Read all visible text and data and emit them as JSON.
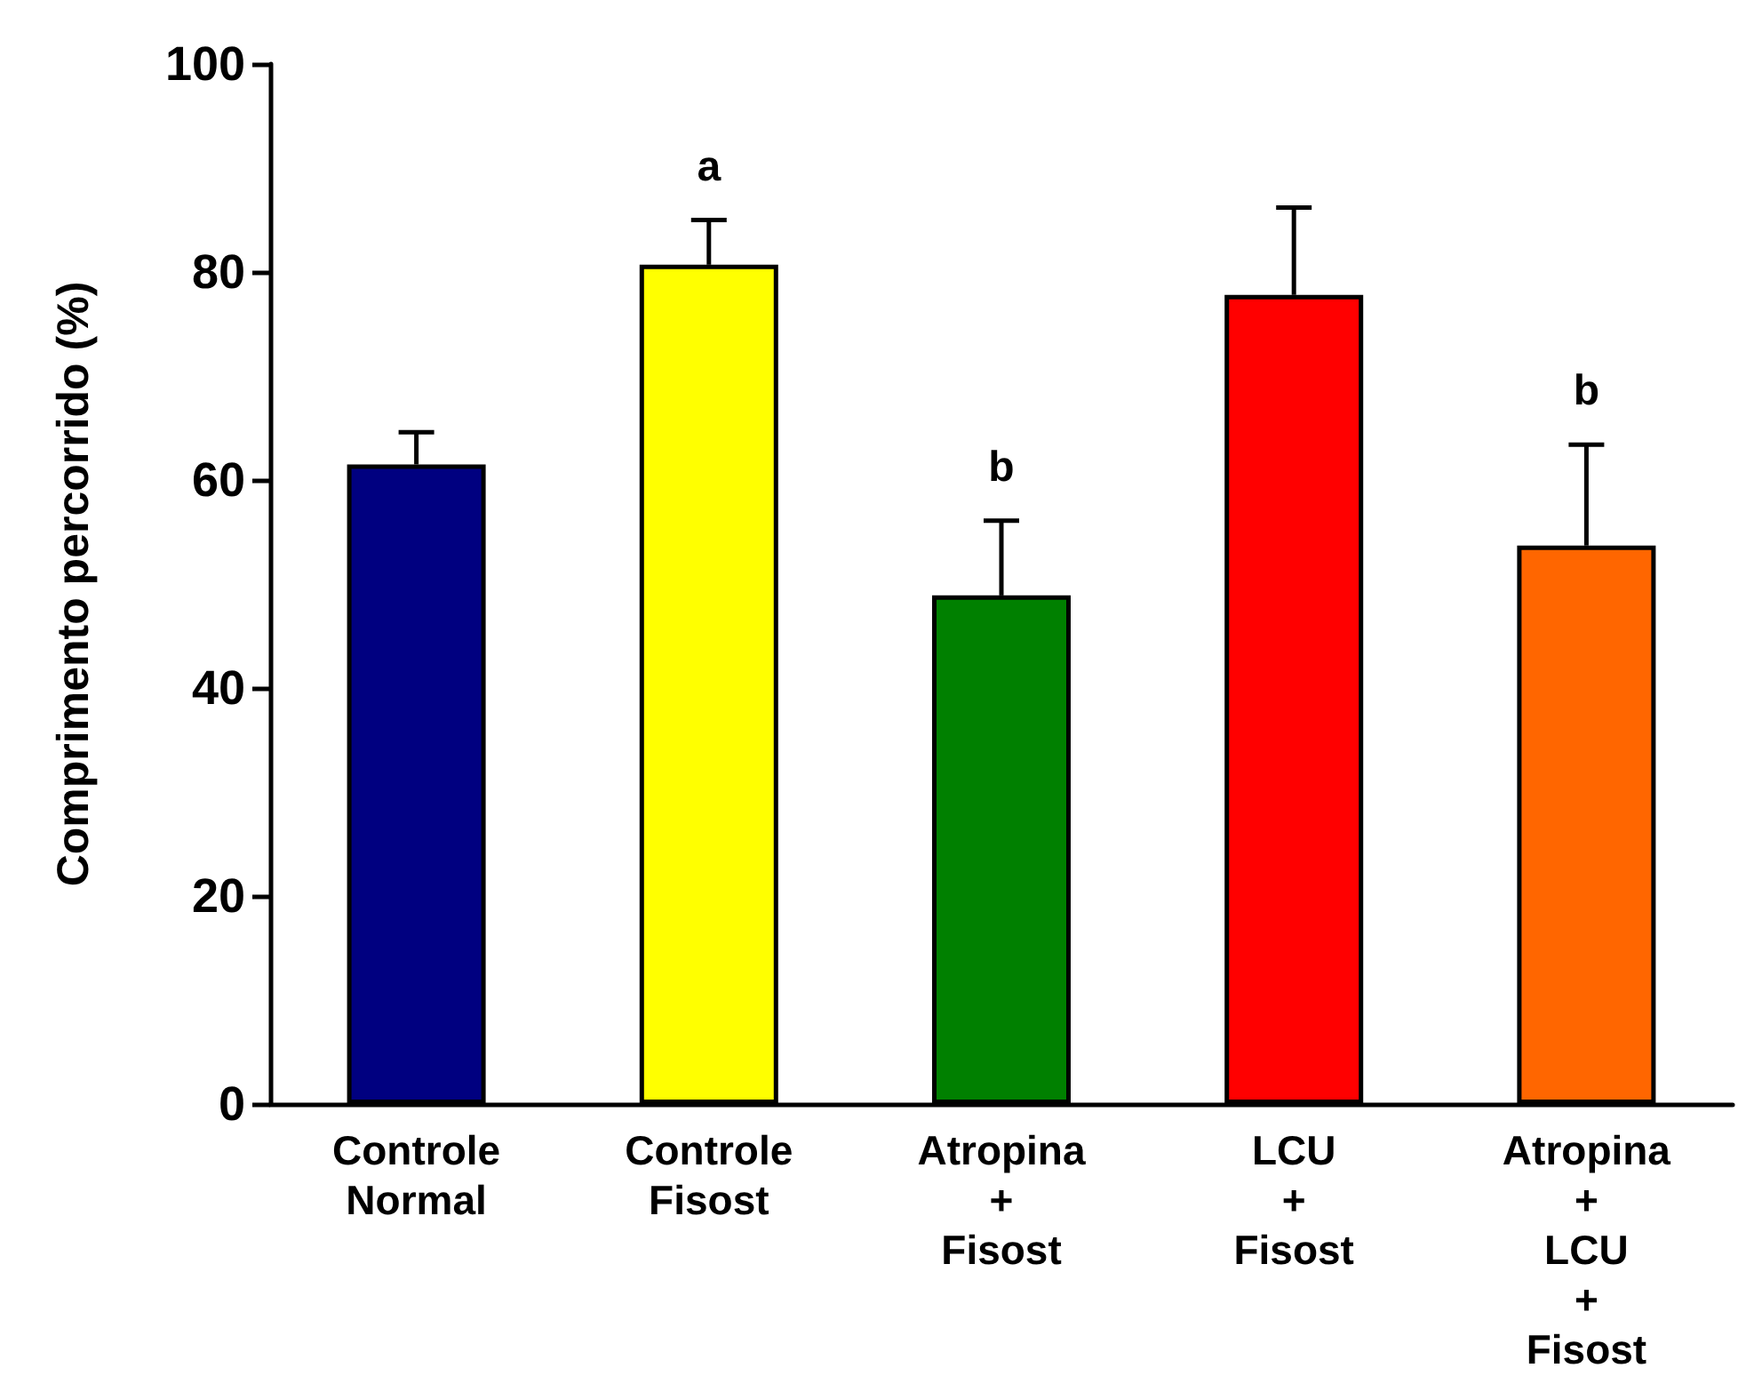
{
  "chart_data": {
    "type": "bar",
    "ylabel": "Comprimento percorrido (%)",
    "categories": [
      "Controle\nNormal",
      "Controle\nFisost",
      "Atropina\n+\nFisost",
      "LCU\n+\nFisost",
      "Atropina\n+\nLCU\n+\nFisost"
    ],
    "values": [
      61.5,
      80.7,
      48.9,
      77.8,
      53.7
    ],
    "colors": [
      "#000080",
      "#ffff00",
      "#008000",
      "#ff0000",
      "#ff6600"
    ],
    "errors": [
      [
        61.5,
        64.6
      ],
      [
        80.7,
        85.0
      ],
      [
        48.9,
        56.1
      ],
      [
        77.8,
        86.2
      ],
      [
        53.7,
        63.4
      ]
    ],
    "ylim": [
      0,
      100
    ],
    "yticks": [
      0,
      20,
      40,
      60,
      80,
      100
    ],
    "grid": false,
    "annotations": [
      "a",
      "b",
      "b"
    ]
  }
}
